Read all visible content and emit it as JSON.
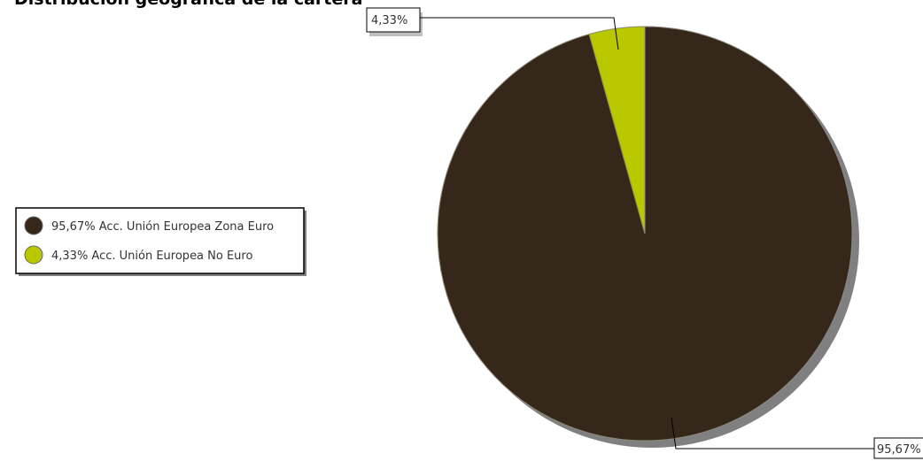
{
  "chart_data": {
    "type": "pie",
    "title": "Distribución geográfica de la cartera",
    "slices": [
      {
        "label": "Acc. Unión Europea Zona Euro",
        "value": 95.67,
        "display_value": "95,67%",
        "color": "#35271a"
      },
      {
        "label": "Acc. Unión Europea No Euro",
        "value": 4.33,
        "display_value": "4,33%",
        "color": "#bac800"
      }
    ],
    "legend_position": "left",
    "shadow_color": "#808080"
  }
}
